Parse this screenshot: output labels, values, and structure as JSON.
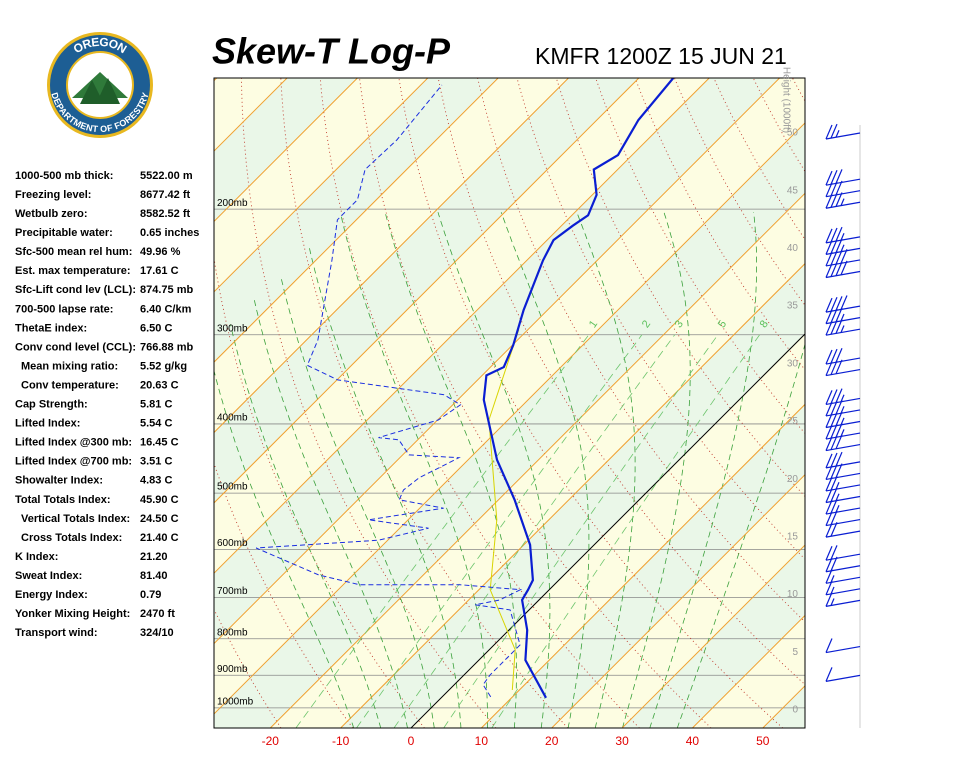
{
  "chart_data": {
    "type": "skew-t",
    "title": "Skew-T Log-P",
    "subtitle": "KMFR 1200Z 15 JUN 21",
    "logo": {
      "top": "OREGON",
      "bottom": "DEPARTMENT OF FORESTRY"
    },
    "stats": [
      [
        "1000-500 mb thick:",
        "5522.00 m"
      ],
      [
        "Freezing level:",
        "8677.42 ft"
      ],
      [
        "Wetbulb zero:",
        "8582.52 ft"
      ],
      [
        "Precipitable water:",
        "0.65 inches"
      ],
      [
        "Sfc-500 mean rel hum:",
        "49.96 %"
      ],
      [
        "Est. max temperature:",
        "17.61 C"
      ],
      [
        "Sfc-Lift cond lev (LCL):",
        "874.75 mb"
      ],
      [
        "700-500 lapse rate:",
        "6.40 C/km"
      ],
      [
        "ThetaE index:",
        "6.50 C"
      ],
      [
        "Conv cond level (CCL):",
        "766.88 mb"
      ],
      [
        "Mean mixing ratio:",
        "5.52 g/kg"
      ],
      [
        "Conv temperature:",
        "20.63 C"
      ],
      [
        "Cap Strength:",
        "5.81 C"
      ],
      [
        "Lifted Index:",
        "5.54 C"
      ],
      [
        "Lifted Index @300 mb:",
        "16.45 C"
      ],
      [
        "Lifted Index @700 mb:",
        "3.51 C"
      ],
      [
        "Showalter Index:",
        "4.83 C"
      ],
      [
        "Total Totals Index:",
        "45.90 C"
      ],
      [
        "Vertical Totals Index:",
        "24.50 C"
      ],
      [
        "Cross Totals Index:",
        "21.40 C"
      ],
      [
        "K Index:",
        "21.20"
      ],
      [
        "Sweat Index:",
        "81.40"
      ],
      [
        "Energy Index:",
        "0.79"
      ],
      [
        "Yonker Mixing Height:",
        "2470 ft"
      ],
      [
        "Transport wind:",
        "324/10"
      ]
    ],
    "xlim": [
      -28,
      56
    ],
    "xticks": [
      -20,
      -10,
      0,
      10,
      20,
      30,
      40,
      50
    ],
    "ylim": [
      1067,
      131
    ],
    "log_y": true,
    "yticks": [
      {
        "value": 1000,
        "label": "1000mb"
      },
      {
        "value": 900,
        "label": "900mb"
      },
      {
        "value": 800,
        "label": "800mb"
      },
      {
        "value": 700,
        "label": "700mb"
      },
      {
        "value": 600,
        "label": "600mb"
      },
      {
        "value": 500,
        "label": "500mb"
      },
      {
        "value": 400,
        "label": "400mb"
      },
      {
        "value": 300,
        "label": "300mb"
      },
      {
        "value": 200,
        "label": "200mb"
      }
    ],
    "height_label": "Height (1000ft)",
    "height_ticks": [
      0,
      5,
      10,
      15,
      20,
      25,
      30,
      35,
      40,
      45,
      50
    ],
    "mixing_ratios": [
      1,
      2,
      3,
      5,
      8
    ],
    "temperature": {
      "color": "#0a1ed2",
      "pressure": [
        968,
        857,
        778,
        706,
        683,
        662,
        591,
        511,
        449,
        370,
        342,
        333,
        310,
        277,
        236,
        221,
        211,
        204,
        191,
        176,
        168,
        150,
        131
      ],
      "values": [
        14.9,
        6.6,
        2.6,
        -2.4,
        -3.0,
        -3.7,
        -9.1,
        -17.7,
        -25.9,
        -36.3,
        -39.4,
        -38.1,
        -39.9,
        -43.4,
        -47.7,
        -49.1,
        -48.4,
        -47.7,
        -49.4,
        -53.4,
        -52.0,
        -54.1,
        -55.1
      ]
    },
    "dewpoint": {
      "color": "#1a2ee0",
      "pressure": [
        965,
        928,
        899,
        816,
        729,
        717,
        706,
        683,
        672,
        672,
        651,
        597,
        582,
        560,
        545,
        525,
        511,
        495,
        476,
        446,
        442,
        421,
        418,
        395,
        376,
        364,
        347,
        331,
        305,
        236,
        207,
        194,
        176,
        160,
        134
      ],
      "values": [
        6.9,
        4.1,
        3.7,
        3.7,
        -2.7,
        -8.4,
        -5.6,
        -4.1,
        -13.4,
        -27.7,
        -34.9,
        -47.6,
        -31.3,
        -25.9,
        -35.6,
        -26.6,
        -34.1,
        -34.9,
        -34.4,
        -31.6,
        -39.1,
        -42.7,
        -45.9,
        -39.9,
        -38.9,
        -42.7,
        -59.9,
        -66.3,
        -68.4,
        -77.7,
        -82.7,
        -82.7,
        -85.9,
        -85.6,
        -87.0
      ]
    },
    "parcel": {
      "color": "#d8d400",
      "pressure": [
        944,
        829,
        683,
        545,
        449,
        395,
        295
      ],
      "values": [
        9.0,
        3.7,
        -8.4,
        -17.4,
        -26.6,
        -32.7,
        -41.3
      ]
    },
    "wind": {
      "color": "#0a1ed2",
      "heights": [
        3,
        5.5,
        9.5,
        10.5,
        11.5,
        12.5,
        13.5,
        15.5,
        16.5,
        17.5,
        18.5,
        19.5,
        20.5,
        21.5,
        23,
        24,
        25,
        26,
        27,
        29.5,
        30.5,
        33,
        34,
        35,
        38,
        39,
        40,
        41,
        44,
        45,
        46,
        50
      ],
      "speeds": [
        10,
        10,
        15,
        15,
        15,
        20,
        20,
        20,
        20,
        25,
        25,
        25,
        30,
        30,
        30,
        35,
        35,
        35,
        35,
        30,
        30,
        35,
        35,
        40,
        40,
        40,
        35,
        35,
        35,
        30,
        30,
        25
      ]
    }
  }
}
